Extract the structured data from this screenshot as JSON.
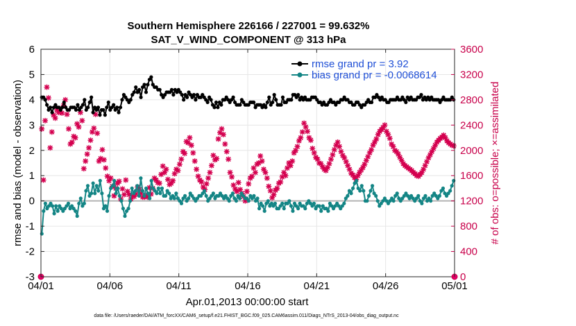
{
  "chart_data": {
    "type": "line",
    "title_line1": "Southern Hemisphere 226166 / 227001 = 99.632%",
    "title_line2": "SAT_V_WIND_COMPONENT @ 313 hPa",
    "xlabel": "Apr.01,2013 00:00:00 start",
    "ylabel": "rmse and bias (model - observation)",
    "ylabel_right": "# of obs: o=possible; ×=assimilated",
    "xlim": [
      0,
      30
    ],
    "ylim": [
      -3,
      6
    ],
    "ylim_right": [
      0,
      3600
    ],
    "x_ticks": [
      {
        "value": 0,
        "label": "04/01"
      },
      {
        "value": 5,
        "label": "04/06"
      },
      {
        "value": 10,
        "label": "04/11"
      },
      {
        "value": 15,
        "label": "04/16"
      },
      {
        "value": 20,
        "label": "04/21"
      },
      {
        "value": 25,
        "label": "04/26"
      },
      {
        "value": 30,
        "label": "05/01"
      }
    ],
    "y_ticks": [
      {
        "value": 6,
        "label": "6"
      },
      {
        "value": 5,
        "label": "5"
      },
      {
        "value": 4,
        "label": "4"
      },
      {
        "value": 3,
        "label": "3"
      },
      {
        "value": 2,
        "label": "2"
      },
      {
        "value": 1,
        "label": "1"
      },
      {
        "value": 0,
        "label": "0"
      },
      {
        "value": -1,
        "label": "-1"
      },
      {
        "value": -2,
        "label": "-2"
      },
      {
        "value": -3,
        "label": "-3"
      }
    ],
    "y_ticks_right": [
      {
        "value": 3600,
        "label": "3600"
      },
      {
        "value": 3200,
        "label": "3200"
      },
      {
        "value": 2800,
        "label": "2800"
      },
      {
        "value": 2400,
        "label": "2400"
      },
      {
        "value": 2000,
        "label": "2000"
      },
      {
        "value": 1600,
        "label": "1600"
      },
      {
        "value": 1200,
        "label": "1200"
      },
      {
        "value": 800,
        "label": "800"
      },
      {
        "value": 400,
        "label": "400"
      },
      {
        "value": 0,
        "label": "0"
      }
    ],
    "legend_position": "top-right",
    "grid": true,
    "series": [
      {
        "name": "rmse grand pr = 3.92",
        "color": "#000000",
        "values": [
          4.1,
          4.1,
          4.0,
          3.8,
          3.6,
          3.7,
          3.5,
          3.7,
          3.8,
          3.7,
          3.7,
          3.6,
          3.7,
          3.9,
          3.7,
          3.6,
          3.6,
          3.7,
          3.7,
          3.7,
          3.6,
          3.8,
          3.6,
          3.7,
          3.8,
          4.0,
          3.6,
          3.7,
          3.9,
          4.1,
          3.5,
          3.7,
          3.6,
          3.7,
          3.4,
          3.6,
          3.6,
          3.4,
          3.7,
          3.9,
          3.6,
          3.7,
          3.8,
          3.6,
          3.7,
          3.5,
          3.7,
          4.0,
          4.2,
          4.1,
          4.0,
          3.9,
          4.0,
          4.2,
          4.3,
          4.5,
          4.3,
          4.4,
          4.1,
          4.5,
          4.6,
          4.3,
          4.6,
          4.8,
          4.9,
          4.6,
          4.5,
          4.5,
          4.4,
          4.4,
          4.2,
          4.1,
          4.2,
          4.3,
          4.3,
          4.3,
          4.4,
          4.2,
          4.4,
          4.3,
          4.4,
          4.3,
          4.2,
          4.0,
          4.2,
          4.1,
          4.3,
          4.2,
          4.1,
          4.2,
          4.0,
          4.2,
          4.1,
          4.1,
          4.2,
          4.1,
          4.0,
          3.9,
          4.1,
          4.0,
          3.8,
          3.7,
          3.9,
          3.7,
          3.9,
          3.8,
          4.0,
          4.0,
          4.1,
          4.0,
          3.9,
          4.0,
          4.1,
          3.9,
          3.8,
          3.8,
          3.8,
          4.0,
          3.9,
          3.8,
          3.8,
          3.8,
          3.9,
          3.9,
          3.9,
          3.7,
          3.8,
          3.8,
          3.8,
          3.7,
          3.8,
          3.7,
          3.9,
          4.1,
          3.8,
          3.9,
          4.2,
          4.0,
          3.8,
          3.8,
          3.8,
          4.1,
          3.9,
          3.9,
          4.0,
          4.0,
          4.0,
          4.2,
          4.2,
          4.1,
          4.2,
          4.0,
          4.1,
          4.0,
          4.1,
          4.0,
          4.0,
          4.0,
          4.1,
          4.1,
          4.1,
          4.0,
          3.9,
          3.9,
          3.8,
          3.9,
          3.8,
          3.8,
          3.9,
          4.0,
          3.9,
          3.9,
          3.8,
          3.9,
          3.9,
          4.0,
          4.0,
          4.1,
          4.0,
          4.0,
          3.9,
          3.9,
          3.8,
          3.8,
          3.9,
          3.9,
          3.8,
          3.7,
          3.8,
          3.8,
          3.9,
          4.0,
          3.9,
          3.9,
          4.1,
          4.1,
          4.2,
          4.1,
          4.0,
          4.1,
          4.0,
          4.0,
          3.9,
          3.9,
          4.0,
          4.0,
          4.0,
          4.0,
          4.1,
          4.0,
          4.0,
          4.1,
          4.0,
          3.9,
          4.1,
          4.0,
          4.1,
          4.0,
          4.0,
          4.0,
          4.1,
          4.1,
          4.2,
          4.0,
          4.1,
          4.0,
          4.1,
          4.0,
          4.1,
          4.0,
          4.0,
          4.0,
          4.0,
          3.9,
          4.0,
          4.1,
          4.0,
          4.0,
          4.0,
          4.0,
          4.1,
          4.0
        ]
      },
      {
        "name": "bias grand pr = -0.0068614",
        "color": "#138585",
        "values": [
          -1.3,
          -0.4,
          -0.1,
          -0.3,
          -0.2,
          -0.1,
          -0.2,
          -0.5,
          -0.2,
          -0.4,
          -0.2,
          -0.3,
          -0.4,
          -0.3,
          -0.2,
          -0.1,
          -0.3,
          -0.2,
          -0.3,
          -0.4,
          -0.6,
          -0.1,
          0.1,
          -0.2,
          -0.1,
          0.4,
          0.6,
          0.2,
          0.3,
          0.7,
          0.3,
          0.6,
          0.4,
          0.8,
          0.3,
          -0.3,
          -0.2,
          -0.4,
          0.2,
          0.5,
          0.6,
          0.8,
          0.3,
          0.5,
          0.2,
          0.0,
          -0.3,
          -0.6,
          -0.4,
          -0.3,
          0.0,
          0.5,
          0.3,
          0.4,
          0.6,
          0.2,
          0.9,
          0.4,
          0.2,
          0.5,
          0.3,
          0.1,
          0.8,
          0.5,
          0.4,
          0.3,
          0.5,
          0.3,
          0.5,
          0.2,
          0.2,
          0.4,
          0.3,
          0.1,
          0.2,
          0.1,
          0.3,
          0.1,
          0.0,
          -0.1,
          0.1,
          0.2,
          0.0,
          0.1,
          0.3,
          0.2,
          0.1,
          0.0,
          0.1,
          0.2,
          0.2,
          0.3,
          0.4,
          0.2,
          0.0,
          0.1,
          0.2,
          0.3,
          0.1,
          0.2,
          0.2,
          0.3,
          0.2,
          0.1,
          0.2,
          0.1,
          0.0,
          0.2,
          0.3,
          0.1,
          0.0,
          0.2,
          0.1,
          0.3,
          0.2,
          0.1,
          0.1,
          0.0,
          0.2,
          0.1,
          0.2,
          0.0,
          0.1,
          -0.3,
          -0.1,
          -0.2,
          -0.4,
          -0.1,
          0.0,
          -0.2,
          -0.1,
          -0.2,
          -0.1,
          -0.3,
          -0.3,
          -0.2,
          -0.1,
          -0.3,
          -0.1,
          -0.1,
          0.0,
          -0.2,
          -0.4,
          -0.1,
          -0.2,
          -0.3,
          -0.1,
          -0.2,
          -0.2,
          -0.3,
          -0.1,
          0.0,
          -0.1,
          -0.2,
          -0.1,
          -0.3,
          -0.2,
          -0.2,
          -0.4,
          -0.2,
          -0.3,
          -0.3,
          -0.4,
          -0.1,
          -0.2,
          -0.3,
          -0.2,
          -0.1,
          -0.2,
          -0.3,
          -0.2,
          -0.1,
          0.1,
          0.2,
          0.4,
          0.3,
          0.5,
          0.7,
          0.8,
          0.5,
          0.4,
          0.6,
          0.4,
          0.0,
          0.0,
          0.2,
          0.4,
          0.6,
          0.3,
          0.2,
          0.0,
          -0.2,
          -0.1,
          0.0,
          0.1,
          0.0,
          -0.1,
          0.0,
          0.1,
          0.0,
          0.2,
          0.3,
          0.1,
          0.0,
          0.1,
          0.2,
          0.3,
          0.2,
          0.1,
          0.2,
          0.1,
          0.0,
          0.1,
          0.2,
          0.0,
          -0.1,
          0.1,
          0.2,
          0.0,
          0.1,
          0.0,
          0.2,
          0.3,
          0.2,
          0.1,
          0.2,
          0.4,
          0.5,
          0.3,
          0.2,
          0.3,
          0.4,
          0.6,
          0.8
        ]
      }
    ],
    "obs_assimilated": [
      2340,
      1530,
      2470,
      3000,
      2830,
      2040,
      2290,
      2560,
      2510,
      2640,
      2600,
      2610,
      2590,
      2710,
      2800,
      2570,
      2340,
      2100,
      2130,
      2220,
      2200,
      2420,
      2370,
      2600,
      2470,
      1710,
      1830,
      1940,
      2040,
      2160,
      2290,
      2350,
      2570,
      2270,
      1830,
      1870,
      2010,
      1850,
      1720,
      1590,
      1520,
      1560,
      1430,
      1280,
      1400,
      1480,
      1510,
      1230,
      1390,
      1300,
      1530,
      1350,
      1300,
      1230,
      1280,
      1270,
      1310,
      1420,
      1380,
      1320,
      1260,
      1260,
      1280,
      1260,
      1410,
      1310,
      1400,
      1560,
      1530,
      1490,
      1480,
      1620,
      1750,
      1650,
      1700,
      1540,
      1460,
      1480,
      1520,
      1630,
      1700,
      1680,
      1780,
      1860,
      1980,
      1950,
      2140,
      2120,
      2200,
      2080,
      1960,
      1830,
      1700,
      1590,
      1530,
      1500,
      1420,
      1380,
      1470,
      1560,
      1650,
      1760,
      1920,
      1850,
      1870,
      2180,
      2280,
      2340,
      2250,
      2100,
      1980,
      1860,
      1650,
      1580,
      1450,
      1390,
      1350,
      1490,
      1380,
      1320,
      1270,
      1200,
      1350,
      1470,
      1560,
      1590,
      1720,
      1650,
      1780,
      1800,
      1910,
      1830,
      1700,
      1650,
      1560,
      1430,
      1360,
      1250,
      1300,
      1370,
      1400,
      1480,
      1500,
      1580,
      1650,
      1600,
      1720,
      1800,
      1760,
      1830,
      1960,
      2000,
      2060,
      2150,
      2200,
      2290,
      2430,
      2370,
      2300,
      2200,
      2160,
      2030,
      1960,
      1890,
      1860,
      1800,
      1790,
      1740,
      1700,
      1680,
      1730,
      1790,
      1860,
      1930,
      2010,
      2080,
      2130,
      2060,
      1980,
      1920,
      1880,
      1820,
      1760,
      1700,
      1640,
      1610,
      1570,
      1540,
      1600,
      1650,
      1690,
      1730,
      1780,
      1840,
      1900,
      1960,
      2010,
      2080,
      2130,
      2180,
      2250,
      2300,
      2330,
      2360,
      2400,
      2300,
      2250,
      2190,
      2100,
      2060,
      2000,
      1980,
      1940,
      1890,
      1840,
      1790,
      1760,
      1740,
      1720,
      1700,
      1680,
      1650,
      1630,
      1600,
      1590,
      1620,
      1650,
      1700,
      1760,
      1820,
      1880,
      1930,
      1980,
      2030,
      2080,
      2130,
      2160,
      2190,
      2210,
      2240,
      2200,
      2150,
      2120,
      2100,
      2080,
      2070
    ],
    "obs_possible_markers": [
      {
        "x": 0,
        "count": 0
      },
      {
        "x": 30,
        "count": 0
      }
    ],
    "footer": "data file: /Users/raeder/DAI/ATM_forcXX/CAM6_setup/f.e21.FHIST_BGC.f09_025.CAM6assim.011/Diags_NTrS_2013-04/obs_diag_output.nc"
  }
}
